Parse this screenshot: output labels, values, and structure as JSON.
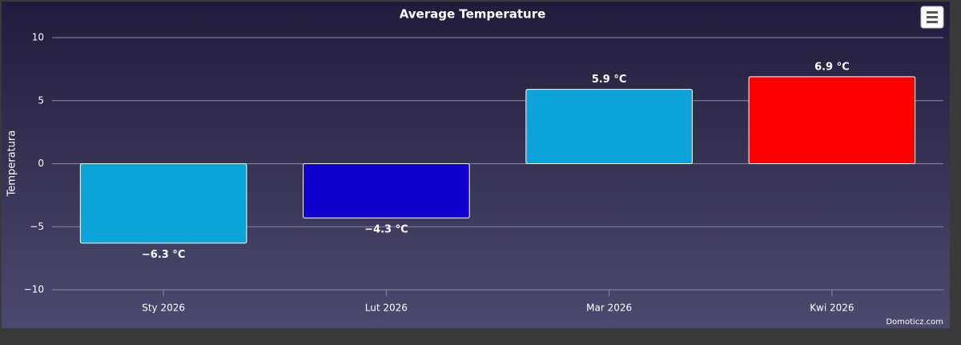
{
  "chart_data": {
    "type": "bar",
    "title": "Average Temperature",
    "y_label": "Temperatura",
    "categories": [
      "Sty 2026",
      "Lut 2026",
      "Mar 2026",
      "Kwi 2026"
    ],
    "values": [
      -6.3,
      -4.3,
      5.9,
      6.9
    ],
    "value_labels": [
      "−6.3 °C",
      "−4.3 °C",
      "5.9 °C",
      "6.9 °C"
    ],
    "colors": [
      "#0ba3d9",
      "#0f00cc",
      "#0ba3d9",
      "#ff0000"
    ],
    "ylim": [
      -10,
      10
    ],
    "yticks": [
      {
        "value": -10,
        "label": "−10"
      },
      {
        "value": -5,
        "label": "−5"
      },
      0,
      5,
      10
    ],
    "grid": true,
    "credits": "Domoticz.com"
  }
}
